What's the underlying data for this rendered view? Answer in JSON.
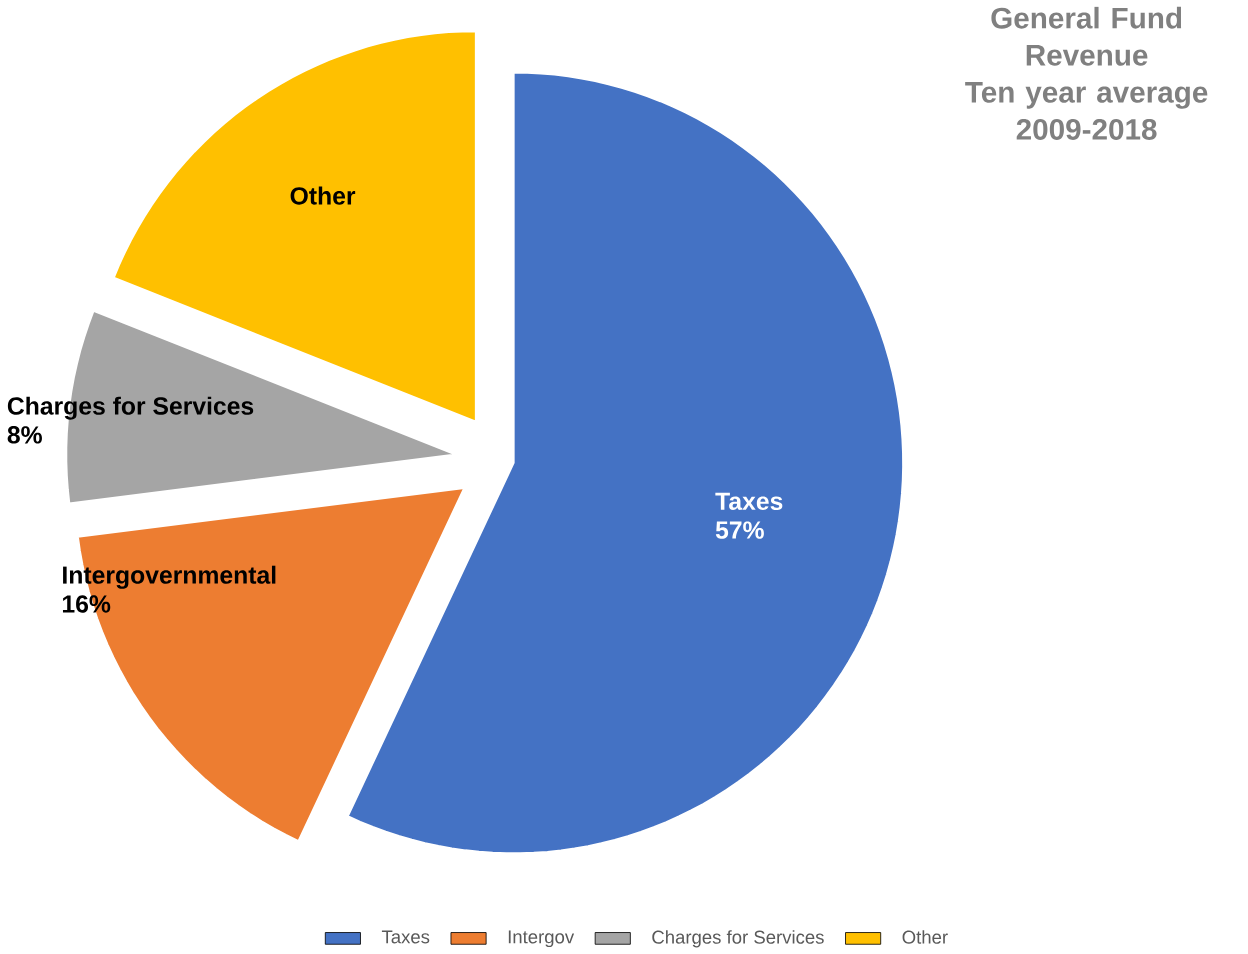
{
  "chart_data": {
    "type": "pie",
    "title": "General Fund Revenue",
    "subtitle": "Ten year average 2009-2018",
    "categories": [
      "Taxes",
      "Intergov",
      "Charges for Services",
      "Other"
    ],
    "values": [
      57,
      16,
      8,
      19
    ],
    "colors": [
      "#4472c4",
      "#ed7d31",
      "#a5a5a5",
      "#ffc000"
    ],
    "value_labels": [
      "57%",
      "16%",
      "8%",
      null
    ],
    "annotations": [
      "Taxes",
      "Intergovernmental",
      "Charges for Services",
      "Other"
    ],
    "legend": "bottom"
  }
}
